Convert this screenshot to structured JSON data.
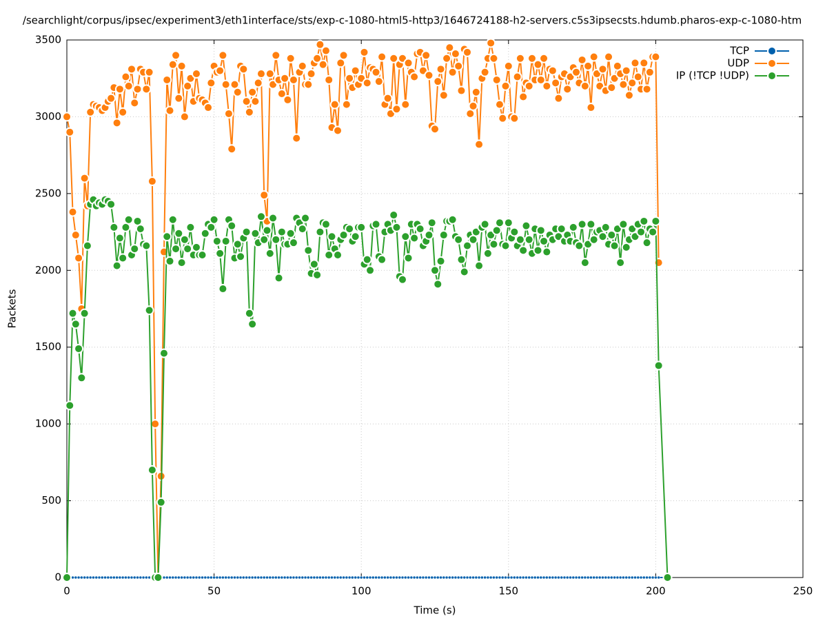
{
  "chart_data": {
    "type": "line",
    "title": "/searchlight/corpus/ipsec/experiment3/eth1interface/sts/exp-c-1080-html5-http3/1646724188-h2-servers.c5s3ipsecsts.hdumb.pharos-exp-c-1080-htm",
    "x_label": "Time (s)",
    "y_label": "Packets",
    "xlim": [
      0,
      250
    ],
    "xticks": [
      0,
      50,
      100,
      150,
      200,
      250
    ],
    "ylim": [
      0,
      3500
    ],
    "yticks": [
      0,
      500,
      1000,
      1500,
      2000,
      2500,
      3000,
      3500
    ],
    "grid": true,
    "legend": "top-right",
    "x": [
      0,
      1,
      2,
      3,
      4,
      5,
      6,
      7,
      8,
      9,
      10,
      11,
      12,
      13,
      14,
      15,
      16,
      17,
      18,
      19,
      20,
      21,
      22,
      23,
      24,
      25,
      26,
      27,
      28,
      29,
      30,
      31,
      32,
      33,
      34,
      35,
      36,
      37,
      38,
      39,
      40,
      41,
      42,
      43,
      44,
      45,
      46,
      47,
      48,
      49,
      50,
      51,
      52,
      53,
      54,
      55,
      56,
      57,
      58,
      59,
      60,
      61,
      62,
      63,
      64,
      65,
      66,
      67,
      68,
      69,
      70,
      71,
      72,
      73,
      74,
      75,
      76,
      77,
      78,
      79,
      80,
      81,
      82,
      83,
      84,
      85,
      86,
      87,
      88,
      89,
      90,
      91,
      92,
      93,
      94,
      95,
      96,
      97,
      98,
      99,
      100,
      101,
      102,
      103,
      104,
      105,
      106,
      107,
      108,
      109,
      110,
      111,
      112,
      113,
      114,
      115,
      116,
      117,
      118,
      119,
      120,
      121,
      122,
      123,
      124,
      125,
      126,
      127,
      128,
      129,
      130,
      131,
      132,
      133,
      134,
      135,
      136,
      137,
      138,
      139,
      140,
      141,
      142,
      143,
      144,
      145,
      146,
      147,
      148,
      149,
      150,
      151,
      152,
      153,
      154,
      155,
      156,
      157,
      158,
      159,
      160,
      161,
      162,
      163,
      164,
      165,
      166,
      167,
      168,
      169,
      170,
      171,
      172,
      173,
      174,
      175,
      176,
      177,
      178,
      179,
      180,
      181,
      182,
      183,
      184,
      185,
      186,
      187,
      188,
      189,
      190,
      191,
      192,
      193,
      194,
      195,
      196,
      197,
      198,
      199,
      200,
      201,
      204
    ],
    "series": [
      {
        "name": "TCP",
        "color": "#0060ad",
        "values": [
          0,
          0,
          0,
          0,
          0,
          0,
          0,
          0,
          0,
          0,
          0,
          0,
          0,
          0,
          0,
          0,
          0,
          0,
          0,
          0,
          0,
          0,
          0,
          0,
          0,
          0,
          0,
          0,
          0,
          0,
          0,
          0,
          0,
          0,
          0,
          0,
          0,
          0,
          0,
          0,
          0,
          0,
          0,
          0,
          0,
          0,
          0,
          0,
          0,
          0,
          0,
          0,
          0,
          0,
          0,
          0,
          0,
          0,
          0,
          0,
          0,
          0,
          0,
          0,
          0,
          0,
          0,
          0,
          0,
          0,
          0,
          0,
          0,
          0,
          0,
          0,
          0,
          0,
          0,
          0,
          0,
          0,
          0,
          0,
          0,
          0,
          0,
          0,
          0,
          0,
          0,
          0,
          0,
          0,
          0,
          0,
          0,
          0,
          0,
          0,
          0,
          0,
          0,
          0,
          0,
          0,
          0,
          0,
          0,
          0,
          0,
          0,
          0,
          0,
          0,
          0,
          0,
          0,
          0,
          0,
          0,
          0,
          0,
          0,
          0,
          0,
          0,
          0,
          0,
          0,
          0,
          0,
          0,
          0,
          0,
          0,
          0,
          0,
          0,
          0,
          0,
          0,
          0,
          0,
          0,
          0,
          0,
          0,
          0,
          0,
          0,
          0,
          0,
          0,
          0,
          0,
          0,
          0,
          0,
          0,
          0,
          0,
          0,
          0,
          0,
          0,
          0,
          0,
          0,
          0,
          0,
          0,
          0,
          0,
          0,
          0,
          0,
          0,
          0,
          0,
          0,
          0,
          0,
          0,
          0,
          0,
          0,
          0,
          0,
          0,
          0,
          0,
          0,
          0,
          0,
          0,
          0,
          0,
          0,
          0,
          0,
          0,
          0
        ]
      },
      {
        "name": "UDP",
        "color": "#ff7f0e",
        "values": [
          3000,
          2900,
          2380,
          2230,
          2080,
          1750,
          2600,
          2420,
          3030,
          3080,
          3070,
          3060,
          3040,
          3060,
          3100,
          3120,
          3190,
          2960,
          3180,
          3030,
          3260,
          3200,
          3310,
          3090,
          3180,
          3310,
          3290,
          3180,
          3290,
          2580,
          1000,
          0,
          660,
          2120,
          3240,
          3040,
          3340,
          3400,
          3120,
          3330,
          3000,
          3200,
          3250,
          3100,
          3280,
          3120,
          3110,
          3090,
          3060,
          3220,
          3330,
          3290,
          3300,
          3400,
          3210,
          3020,
          2790,
          3210,
          3160,
          3330,
          3310,
          3100,
          3030,
          3160,
          3100,
          3220,
          3280,
          2490,
          2320,
          3280,
          3210,
          3400,
          3240,
          3150,
          3250,
          3110,
          3380,
          3240,
          2860,
          3290,
          3330,
          3210,
          3210,
          3280,
          3350,
          3380,
          3470,
          3340,
          3430,
          3240,
          2930,
          3080,
          2910,
          3350,
          3400,
          3080,
          3250,
          3190,
          3300,
          3210,
          3250,
          3420,
          3220,
          3320,
          3310,
          3290,
          3230,
          3390,
          3080,
          3120,
          3020,
          3380,
          3050,
          3340,
          3380,
          3080,
          3350,
          3290,
          3260,
          3410,
          3420,
          3300,
          3400,
          3270,
          2940,
          2920,
          3230,
          3310,
          3140,
          3380,
          3450,
          3290,
          3410,
          3330,
          3170,
          3440,
          3420,
          3020,
          3070,
          3160,
          2820,
          3250,
          3290,
          3380,
          3480,
          3380,
          3240,
          3080,
          2990,
          3200,
          3330,
          3000,
          2990,
          3260,
          3380,
          3130,
          3220,
          3200,
          3380,
          3240,
          3340,
          3240,
          3380,
          3200,
          3310,
          3300,
          3220,
          3120,
          3260,
          3280,
          3180,
          3260,
          3320,
          3290,
          3220,
          3370,
          3200,
          3330,
          3060,
          3390,
          3280,
          3200,
          3310,
          3170,
          3390,
          3190,
          3250,
          3330,
          3280,
          3210,
          3300,
          3140,
          3220,
          3350,
          3260,
          3180,
          3350,
          3180,
          3290,
          3390,
          3390,
          2050,
          null
        ]
      },
      {
        "name": "IP (!TCP  !UDP)",
        "color": "#2ca02c",
        "values": [
          0,
          1120,
          1720,
          1650,
          1490,
          1300,
          1720,
          2160,
          2430,
          2460,
          2420,
          2440,
          2430,
          2460,
          2450,
          2430,
          2280,
          2030,
          2210,
          2080,
          2280,
          2330,
          2100,
          2140,
          2320,
          2270,
          2170,
          2160,
          1740,
          700,
          0,
          0,
          490,
          1460,
          2220,
          2060,
          2330,
          2140,
          2240,
          2050,
          2200,
          2140,
          2280,
          2100,
          2150,
          2100,
          2100,
          2240,
          2300,
          2280,
          2330,
          2190,
          2110,
          1880,
          2190,
          2330,
          2290,
          2080,
          2170,
          2090,
          2210,
          2250,
          1720,
          1650,
          2240,
          2180,
          2350,
          2200,
          2260,
          2110,
          2340,
          2200,
          1950,
          2250,
          2170,
          2170,
          2240,
          2180,
          2340,
          2310,
          2270,
          2340,
          2130,
          1980,
          2040,
          1970,
          2250,
          2310,
          2300,
          2100,
          2220,
          2140,
          2100,
          2200,
          2230,
          2280,
          2270,
          2190,
          2220,
          2280,
          2280,
          2040,
          2070,
          2000,
          2290,
          2300,
          2090,
          2070,
          2250,
          2300,
          2260,
          2360,
          2280,
          1960,
          1940,
          2220,
          2080,
          2300,
          2210,
          2300,
          2270,
          2160,
          2190,
          2230,
          2310,
          2000,
          1910,
          2060,
          2230,
          2320,
          2320,
          2330,
          2220,
          2200,
          2070,
          1990,
          2160,
          2230,
          2200,
          2250,
          2030,
          2280,
          2300,
          2110,
          2230,
          2170,
          2260,
          2310,
          2170,
          2160,
          2310,
          2210,
          2250,
          2160,
          2200,
          2130,
          2290,
          2200,
          2110,
          2270,
          2130,
          2260,
          2190,
          2120,
          2230,
          2200,
          2270,
          2220,
          2270,
          2190,
          2230,
          2190,
          2280,
          2180,
          2160,
          2300,
          2050,
          2170,
          2300,
          2200,
          2250,
          2260,
          2220,
          2280,
          2170,
          2230,
          2160,
          2270,
          2050,
          2300,
          2150,
          2200,
          2270,
          2220,
          2300,
          2250,
          2320,
          2180,
          2270,
          2250,
          2320,
          1380,
          0
        ]
      }
    ]
  }
}
